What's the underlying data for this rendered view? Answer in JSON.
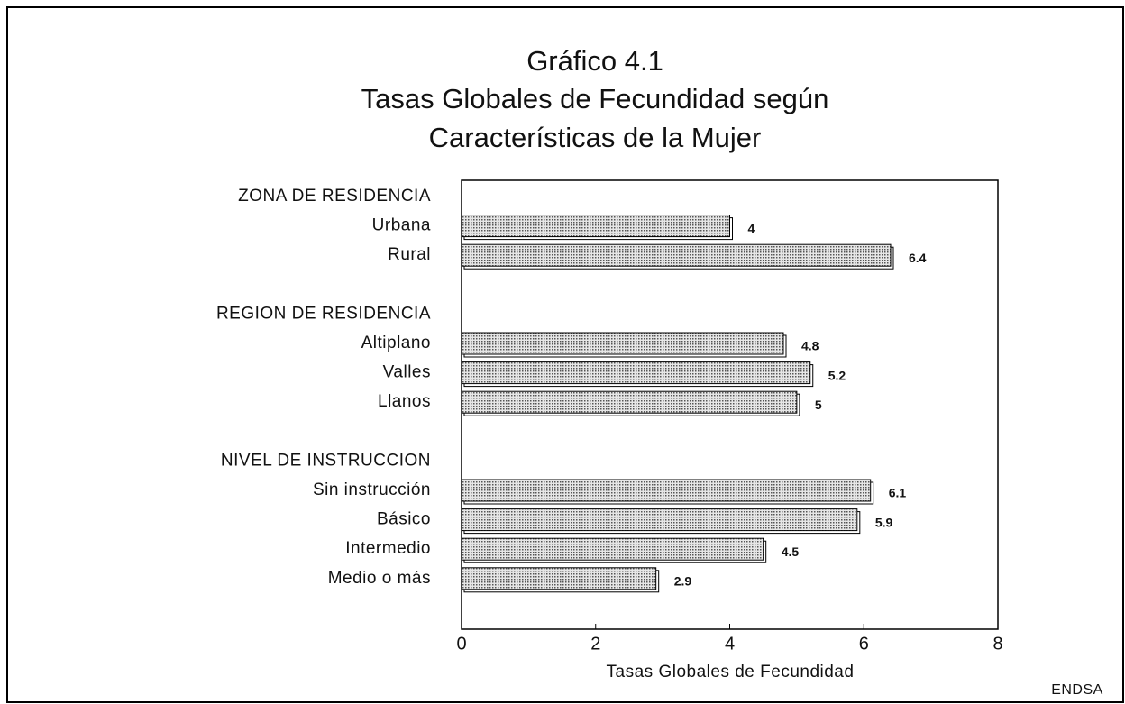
{
  "chart_data": {
    "type": "bar",
    "orientation": "horizontal",
    "title": [
      "Gráfico 4.1",
      "Tasas Globales de Fecundidad según",
      "Características de la Mujer"
    ],
    "groups": [
      {
        "name": "ZONA DE RESIDENCIA",
        "categories": [
          "Urbana",
          "Rural"
        ],
        "values": [
          4,
          6.4
        ]
      },
      {
        "name": "REGION DE RESIDENCIA",
        "categories": [
          "Altiplano",
          "Valles",
          "Llanos"
        ],
        "values": [
          4.8,
          5.2,
          5
        ]
      },
      {
        "name": "NIVEL DE INSTRUCCION",
        "categories": [
          "Sin instrucción",
          "Básico",
          "Intermedio",
          "Medio o más"
        ],
        "values": [
          6.1,
          5.9,
          4.5,
          2.9
        ]
      }
    ],
    "xlabel": "Tasas Globales de Fecundidad",
    "xlim": [
      0,
      8
    ],
    "xticks": [
      0,
      2,
      4,
      6,
      8
    ],
    "color": "#9a9a9a",
    "source": "ENDSA"
  }
}
